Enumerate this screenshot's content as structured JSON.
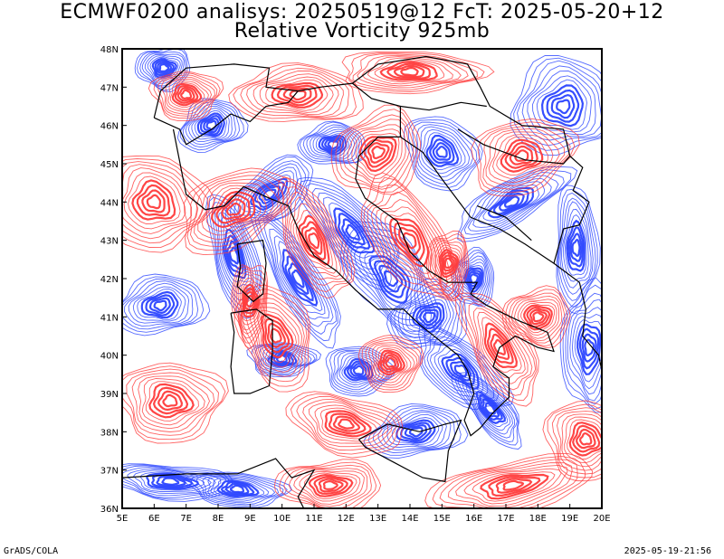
{
  "title_line1": "ECMWF0200 analisys: 20250519@12 FcT: 2025-05-20+12",
  "title_line2": "Relative Vorticity 925mb",
  "footer_left": "GrADS/COLA",
  "footer_right": "2025-05-19-21:56",
  "map": {
    "lon_ticks": [
      "5E",
      "6E",
      "7E",
      "8E",
      "9E",
      "10E",
      "11E",
      "12E",
      "13E",
      "14E",
      "15E",
      "16E",
      "17E",
      "18E",
      "19E",
      "20E"
    ],
    "lat_ticks": [
      "48N",
      "47N",
      "46N",
      "45N",
      "44N",
      "43N",
      "42N",
      "41N",
      "40N",
      "39N",
      "38N",
      "37N",
      "36N"
    ],
    "lon_range": [
      5,
      20
    ],
    "lat_range": [
      36,
      48
    ],
    "colors": {
      "positive": "#ff3b3b",
      "negative": "#2b45ff",
      "coast": "#000000",
      "background": "#ffffff"
    }
  }
}
